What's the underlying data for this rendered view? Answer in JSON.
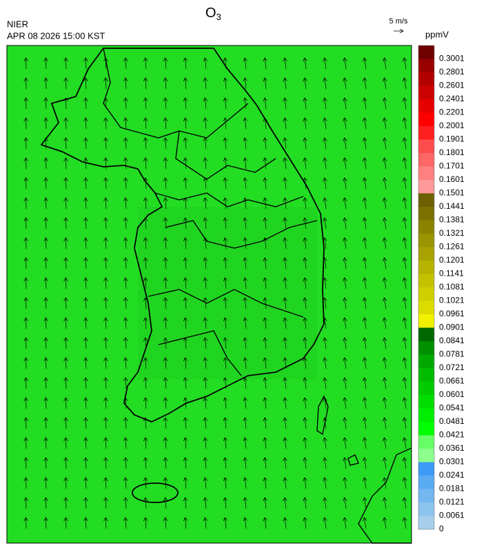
{
  "header": {
    "title": {
      "base": "O",
      "sub": "3"
    },
    "agency": "NIER",
    "datetime": "APR 08 2026 15:00 KST"
  },
  "wind_scale": {
    "label": "5 m/s"
  },
  "colorbar": {
    "unit": "ppmV",
    "labels": [
      0,
      0.0061,
      0.0121,
      0.0181,
      0.0241,
      0.0301,
      0.0361,
      0.0421,
      0.0481,
      0.0541,
      0.0601,
      0.0661,
      0.0721,
      0.0781,
      0.0841,
      0.0901,
      0.0961,
      0.1021,
      0.1081,
      0.1141,
      0.1201,
      0.1261,
      0.1321,
      0.1381,
      0.1441,
      0.1501,
      0.1601,
      0.1701,
      0.1801,
      0.1901,
      0.2001,
      0.2201,
      0.2401,
      0.2601,
      0.2801,
      0.3001
    ],
    "colors": [
      "#a6cfeb",
      "#8dc4ed",
      "#74b7ef",
      "#5aaaf1",
      "#3d9bf5",
      "#8cff8c",
      "#66ff66",
      "#00ff00",
      "#00ee00",
      "#00dd00",
      "#00cc00",
      "#00bb00",
      "#00a800",
      "#009000",
      "#006800",
      "#f0f000",
      "#dcdc00",
      "#cfcf00",
      "#c4c200",
      "#b5b300",
      "#a8a300",
      "#9a9400",
      "#8b8300",
      "#7c7000",
      "#6c6000",
      "#ff9999",
      "#ff8080",
      "#ff6666",
      "#ff4d4d",
      "#ff2020",
      "#ff0000",
      "#e60000",
      "#cc0000",
      "#b30000",
      "#990000",
      "#6e0000"
    ]
  }
}
